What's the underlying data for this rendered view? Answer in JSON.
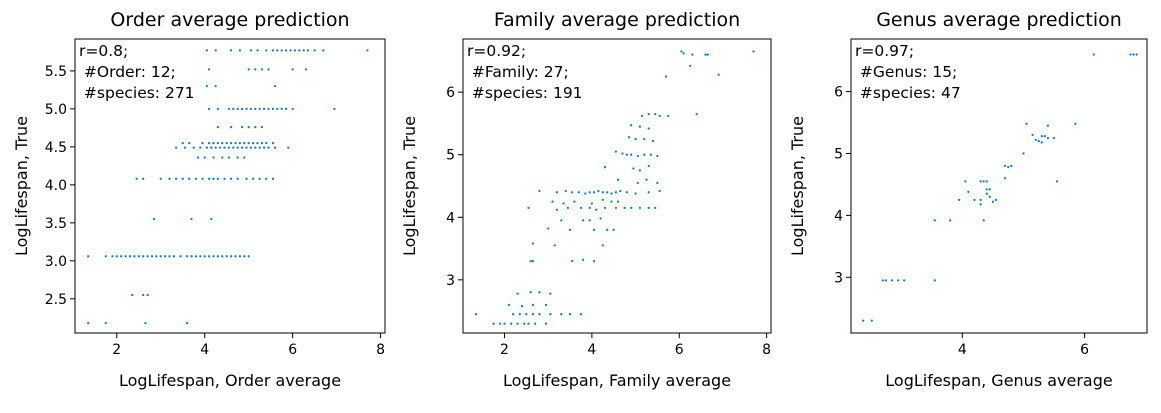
{
  "chart_data": [
    {
      "type": "scatter",
      "title": "Order average prediction",
      "xlabel": "LogLifespan, Order average",
      "ylabel": "LogLifespan, True",
      "xlim": [
        1.05,
        8.1
      ],
      "ylim": [
        2.05,
        5.92
      ],
      "xticks": [
        2,
        4,
        6,
        8
      ],
      "yticks": [
        2.5,
        3.0,
        3.5,
        4.0,
        4.5,
        5.0,
        5.5
      ],
      "xtick_labels": [
        "2",
        "4",
        "6",
        "8"
      ],
      "ytick_labels": [
        "2.5",
        "3.0",
        "3.5",
        "4.0",
        "4.5",
        "5.0",
        "5.5"
      ],
      "annotation": [
        "r=0.8;",
        " #Order: 12;",
        " #species: 271"
      ],
      "point_groups": [
        {
          "y": 5.77,
          "x": [
            4.05,
            4.25,
            4.6,
            4.8,
            5.05,
            5.2,
            5.4,
            5.55,
            5.65,
            5.75,
            5.85,
            5.95,
            6.05,
            6.15,
            6.25,
            6.35,
            6.5,
            6.7,
            7.7
          ]
        },
        {
          "y": 5.52,
          "x": [
            4.1,
            5.0,
            5.15,
            5.3,
            5.45,
            6.0,
            6.3
          ]
        },
        {
          "y": 5.3,
          "x": [
            4.05,
            4.25,
            5.6
          ]
        },
        {
          "y": 5.0,
          "x": [
            4.1,
            4.3,
            4.55,
            4.65,
            4.75,
            4.85,
            4.95,
            5.05,
            5.15,
            5.25,
            5.35,
            5.45,
            5.55,
            5.65,
            5.75,
            5.85,
            6.0,
            6.95
          ]
        },
        {
          "y": 4.76,
          "x": [
            4.3,
            4.6,
            4.85,
            5.0,
            5.15,
            5.3
          ]
        },
        {
          "y": 4.55,
          "x": [
            3.5,
            3.65,
            3.95,
            4.1,
            4.2,
            4.3,
            4.4,
            4.5,
            4.6,
            4.7,
            4.8,
            4.9,
            5.0,
            5.1,
            5.2,
            5.3,
            5.4,
            5.55
          ]
        },
        {
          "y": 4.49,
          "x": [
            3.35,
            3.55,
            3.75,
            3.9,
            4.05,
            4.15,
            4.25,
            4.35,
            4.45,
            4.55,
            4.65,
            4.75,
            4.85,
            4.95,
            5.05,
            5.15,
            5.25,
            5.35,
            5.45,
            5.6,
            5.9
          ]
        },
        {
          "y": 4.36,
          "x": [
            3.85,
            4.0,
            4.2,
            4.4,
            4.55,
            4.75,
            4.9
          ]
        },
        {
          "y": 4.08,
          "x": [
            2.45,
            2.6,
            3.0,
            3.2,
            3.35,
            3.5,
            3.65,
            3.8,
            3.95,
            4.1,
            4.2,
            4.3,
            4.45,
            4.6,
            4.75,
            4.95,
            5.1,
            5.25,
            5.4,
            5.55
          ]
        },
        {
          "y": 3.55,
          "x": [
            2.85,
            3.7,
            4.15
          ]
        },
        {
          "y": 3.06,
          "x": [
            1.35,
            1.75,
            1.9,
            2.0,
            2.1,
            2.2,
            2.3,
            2.4,
            2.5,
            2.6,
            2.7,
            2.8,
            2.9,
            3.0,
            3.1,
            3.2,
            3.3,
            3.45,
            3.6,
            3.7,
            3.8,
            3.9,
            4.0,
            4.1,
            4.2,
            4.3,
            4.4,
            4.5,
            4.6,
            4.7,
            4.8,
            4.9,
            5.0
          ]
        },
        {
          "y": 2.55,
          "x": [
            2.35,
            2.6,
            2.7
          ]
        },
        {
          "y": 2.18,
          "x": [
            1.35,
            1.75,
            2.65,
            3.6
          ]
        }
      ]
    },
    {
      "type": "scatter",
      "title": "Family average prediction",
      "xlabel": "LogLifespan, Family average",
      "ylabel": "LogLifespan, True",
      "xlim": [
        1.05,
        8.1
      ],
      "ylim": [
        2.15,
        6.85
      ],
      "xticks": [
        2,
        4,
        6,
        8
      ],
      "yticks": [
        3,
        4,
        5,
        6
      ],
      "xtick_labels": [
        "2",
        "4",
        "6",
        "8"
      ],
      "ytick_labels": [
        "3",
        "4",
        "5",
        "6"
      ],
      "annotation": [
        "r=0.92;",
        " #Family: 27;",
        " #species: 191"
      ],
      "points": [
        [
          6.05,
          6.65
        ],
        [
          6.1,
          6.62
        ],
        [
          6.3,
          6.6
        ],
        [
          6.6,
          6.6
        ],
        [
          6.65,
          6.6
        ],
        [
          7.7,
          6.65
        ],
        [
          6.25,
          6.42
        ],
        [
          6.9,
          6.28
        ],
        [
          5.7,
          6.25
        ],
        [
          5.15,
          5.62
        ],
        [
          5.3,
          5.65
        ],
        [
          5.45,
          5.65
        ],
        [
          5.55,
          5.62
        ],
        [
          5.75,
          5.62
        ],
        [
          6.4,
          5.65
        ],
        [
          4.9,
          5.47
        ],
        [
          5.1,
          5.45
        ],
        [
          5.3,
          5.42
        ],
        [
          4.85,
          5.28
        ],
        [
          5.0,
          5.25
        ],
        [
          5.2,
          5.25
        ],
        [
          5.4,
          5.22
        ],
        [
          4.55,
          5.05
        ],
        [
          4.7,
          5.02
        ],
        [
          4.8,
          5.0
        ],
        [
          4.9,
          5.0
        ],
        [
          5.05,
          4.98
        ],
        [
          5.2,
          5.0
        ],
        [
          5.35,
          5.0
        ],
        [
          5.5,
          4.98
        ],
        [
          4.3,
          4.8
        ],
        [
          4.95,
          4.78
        ],
        [
          5.1,
          4.75
        ],
        [
          5.3,
          4.82
        ],
        [
          4.6,
          4.6
        ],
        [
          5.05,
          4.55
        ],
        [
          5.25,
          4.6
        ],
        [
          5.5,
          4.55
        ],
        [
          2.8,
          4.42
        ],
        [
          3.2,
          4.4
        ],
        [
          3.4,
          4.42
        ],
        [
          3.55,
          4.4
        ],
        [
          3.7,
          4.4
        ],
        [
          3.85,
          4.38
        ],
        [
          3.95,
          4.4
        ],
        [
          4.05,
          4.4
        ],
        [
          4.15,
          4.42
        ],
        [
          4.25,
          4.4
        ],
        [
          4.35,
          4.4
        ],
        [
          4.45,
          4.38
        ],
        [
          4.55,
          4.4
        ],
        [
          4.65,
          4.42
        ],
        [
          4.8,
          4.4
        ],
        [
          5.0,
          4.38
        ],
        [
          5.3,
          4.4
        ],
        [
          5.55,
          4.42
        ],
        [
          3.1,
          4.25
        ],
        [
          3.35,
          4.22
        ],
        [
          3.6,
          4.25
        ],
        [
          4.0,
          4.22
        ],
        [
          4.25,
          4.28
        ],
        [
          4.45,
          4.25
        ],
        [
          4.6,
          4.25
        ],
        [
          2.55,
          4.15
        ],
        [
          3.2,
          4.12
        ],
        [
          3.45,
          4.15
        ],
        [
          3.75,
          4.15
        ],
        [
          3.95,
          4.15
        ],
        [
          4.1,
          4.12
        ],
        [
          4.3,
          4.15
        ],
        [
          4.55,
          4.15
        ],
        [
          4.75,
          4.15
        ],
        [
          4.9,
          4.15
        ],
        [
          5.1,
          4.15
        ],
        [
          5.3,
          4.15
        ],
        [
          5.45,
          4.15
        ],
        [
          3.3,
          3.95
        ],
        [
          3.8,
          3.95
        ],
        [
          3.95,
          3.95
        ],
        [
          4.2,
          3.98
        ],
        [
          3.0,
          3.82
        ],
        [
          3.5,
          3.8
        ],
        [
          4.05,
          3.8
        ],
        [
          4.35,
          3.8
        ],
        [
          4.5,
          3.8
        ],
        [
          2.65,
          3.58
        ],
        [
          3.15,
          3.55
        ],
        [
          4.25,
          3.55
        ],
        [
          3.8,
          3.32
        ],
        [
          4.05,
          3.3
        ],
        [
          2.6,
          3.3
        ],
        [
          2.65,
          3.3
        ],
        [
          3.55,
          3.3
        ],
        [
          2.3,
          2.78
        ],
        [
          2.6,
          2.8
        ],
        [
          2.8,
          2.8
        ],
        [
          3.05,
          2.78
        ],
        [
          2.1,
          2.6
        ],
        [
          2.4,
          2.58
        ],
        [
          2.65,
          2.6
        ],
        [
          2.95,
          2.6
        ],
        [
          1.35,
          2.45
        ],
        [
          2.2,
          2.45
        ],
        [
          2.35,
          2.45
        ],
        [
          2.5,
          2.45
        ],
        [
          2.65,
          2.45
        ],
        [
          2.8,
          2.45
        ],
        [
          3.05,
          2.45
        ],
        [
          3.3,
          2.45
        ],
        [
          3.5,
          2.45
        ],
        [
          3.75,
          2.45
        ],
        [
          1.75,
          2.3
        ],
        [
          1.9,
          2.3
        ],
        [
          2.0,
          2.3
        ],
        [
          2.15,
          2.3
        ],
        [
          2.3,
          2.3
        ],
        [
          2.45,
          2.3
        ],
        [
          2.55,
          2.3
        ],
        [
          2.7,
          2.3
        ],
        [
          2.95,
          2.3
        ]
      ]
    },
    {
      "type": "scatter",
      "title": "Genus average prediction",
      "xlabel": "LogLifespan, Genus average",
      "ylabel": "LogLifespan, True",
      "xlim": [
        2.18,
        7.02
      ],
      "ylim": [
        2.1,
        6.85
      ],
      "xticks": [
        4,
        6
      ],
      "yticks": [
        3,
        4,
        5,
        6
      ],
      "xtick_labels": [
        "4",
        "6"
      ],
      "ytick_labels": [
        "3",
        "4",
        "5",
        "6"
      ],
      "annotation": [
        "r=0.97;",
        " #Genus: 15;",
        " #species: 47"
      ],
      "points": [
        [
          6.15,
          6.6
        ],
        [
          6.75,
          6.6
        ],
        [
          6.8,
          6.6
        ],
        [
          6.85,
          6.6
        ],
        [
          5.05,
          5.48
        ],
        [
          5.4,
          5.45
        ],
        [
          5.85,
          5.48
        ],
        [
          5.15,
          5.3
        ],
        [
          5.3,
          5.28
        ],
        [
          5.35,
          5.28
        ],
        [
          5.4,
          5.25
        ],
        [
          5.5,
          5.25
        ],
        [
          5.2,
          5.22
        ],
        [
          5.25,
          5.2
        ],
        [
          5.3,
          5.18
        ],
        [
          5.0,
          5.0
        ],
        [
          4.7,
          4.8
        ],
        [
          4.75,
          4.78
        ],
        [
          4.8,
          4.8
        ],
        [
          4.7,
          4.6
        ],
        [
          4.05,
          4.55
        ],
        [
          4.3,
          4.55
        ],
        [
          4.35,
          4.55
        ],
        [
          4.4,
          4.55
        ],
        [
          5.55,
          4.55
        ],
        [
          4.1,
          4.38
        ],
        [
          4.4,
          4.42
        ],
        [
          4.45,
          4.42
        ],
        [
          4.4,
          4.35
        ],
        [
          4.45,
          4.3
        ],
        [
          3.95,
          4.25
        ],
        [
          4.2,
          4.25
        ],
        [
          4.3,
          4.25
        ],
        [
          4.5,
          4.22
        ],
        [
          4.55,
          4.25
        ],
        [
          4.3,
          4.18
        ],
        [
          3.55,
          3.92
        ],
        [
          3.8,
          3.92
        ],
        [
          4.35,
          3.92
        ],
        [
          2.7,
          2.95
        ],
        [
          2.75,
          2.95
        ],
        [
          2.85,
          2.95
        ],
        [
          2.95,
          2.95
        ],
        [
          3.05,
          2.95
        ],
        [
          3.55,
          2.95
        ],
        [
          2.38,
          2.3
        ],
        [
          2.52,
          2.3
        ]
      ]
    }
  ]
}
